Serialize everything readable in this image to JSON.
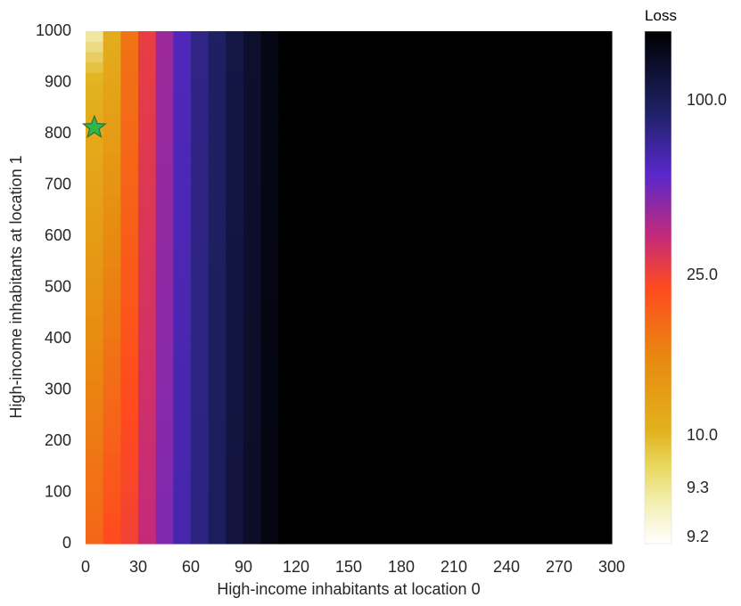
{
  "chart_data": {
    "type": "heatmap",
    "xlabel": "High-income inhabitants at location 0",
    "ylabel": "High-income inhabitants at location 1",
    "xlim": [
      0,
      300
    ],
    "ylim": [
      0,
      1000
    ],
    "x_ticks": [
      "0",
      "30",
      "60",
      "90",
      "120",
      "150",
      "180",
      "210",
      "240",
      "270",
      "300"
    ],
    "y_ticks": [
      "0",
      "100",
      "200",
      "300",
      "400",
      "500",
      "600",
      "700",
      "800",
      "900",
      "1000"
    ],
    "x_cell_width": 10,
    "y_cell_height": 20,
    "loss_by_x_column": [
      {
        "x_range": [
          0,
          10
        ],
        "loss_y0": 20,
        "loss_y1000": 9.3
      },
      {
        "x_range": [
          10,
          20
        ],
        "loss_y0": 25,
        "loss_y1000": 10.5
      },
      {
        "x_range": [
          20,
          30
        ],
        "loss_y0": 28,
        "loss_y1000": 18
      },
      {
        "x_range": [
          30,
          40
        ],
        "loss_y0": 40,
        "loss_y1000": 30
      },
      {
        "x_range": [
          40,
          50
        ],
        "loss_y0": 55,
        "loss_y1000": 48
      },
      {
        "x_range": [
          50,
          60
        ],
        "loss_y0": 75,
        "loss_y1000": 70
      },
      {
        "x_range": [
          60,
          70
        ],
        "loss_y0": 90,
        "loss_y1000": 88
      },
      {
        "x_range": [
          70,
          80
        ],
        "loss_y0": 105,
        "loss_y1000": 102
      },
      {
        "x_range": [
          80,
          90
        ],
        "loss_y0": 118,
        "loss_y1000": 115
      },
      {
        "x_range": [
          90,
          100
        ],
        "loss_y0": 128,
        "loss_y1000": 126
      },
      {
        "x_range": [
          100,
          110
        ],
        "loss_y0": 140,
        "loss_y1000": 138
      },
      {
        "x_range": [
          110,
          300
        ],
        "loss_y0": 160,
        "loss_y1000": 160
      }
    ],
    "optimum_marker": {
      "x": 5,
      "y": 812,
      "shape": "star",
      "color": "#2db84a"
    },
    "colorbar": {
      "title": "Loss",
      "ticks": [
        "9.2",
        "9.3",
        "10.0",
        "25.0",
        "100.0"
      ],
      "colors": [
        "#ffffff",
        "#e8d860",
        "#e2b21e",
        "#e88a10",
        "#ff4a1e",
        "#c42a7a",
        "#5a28cc",
        "#1e2268",
        "#000000"
      ]
    }
  }
}
